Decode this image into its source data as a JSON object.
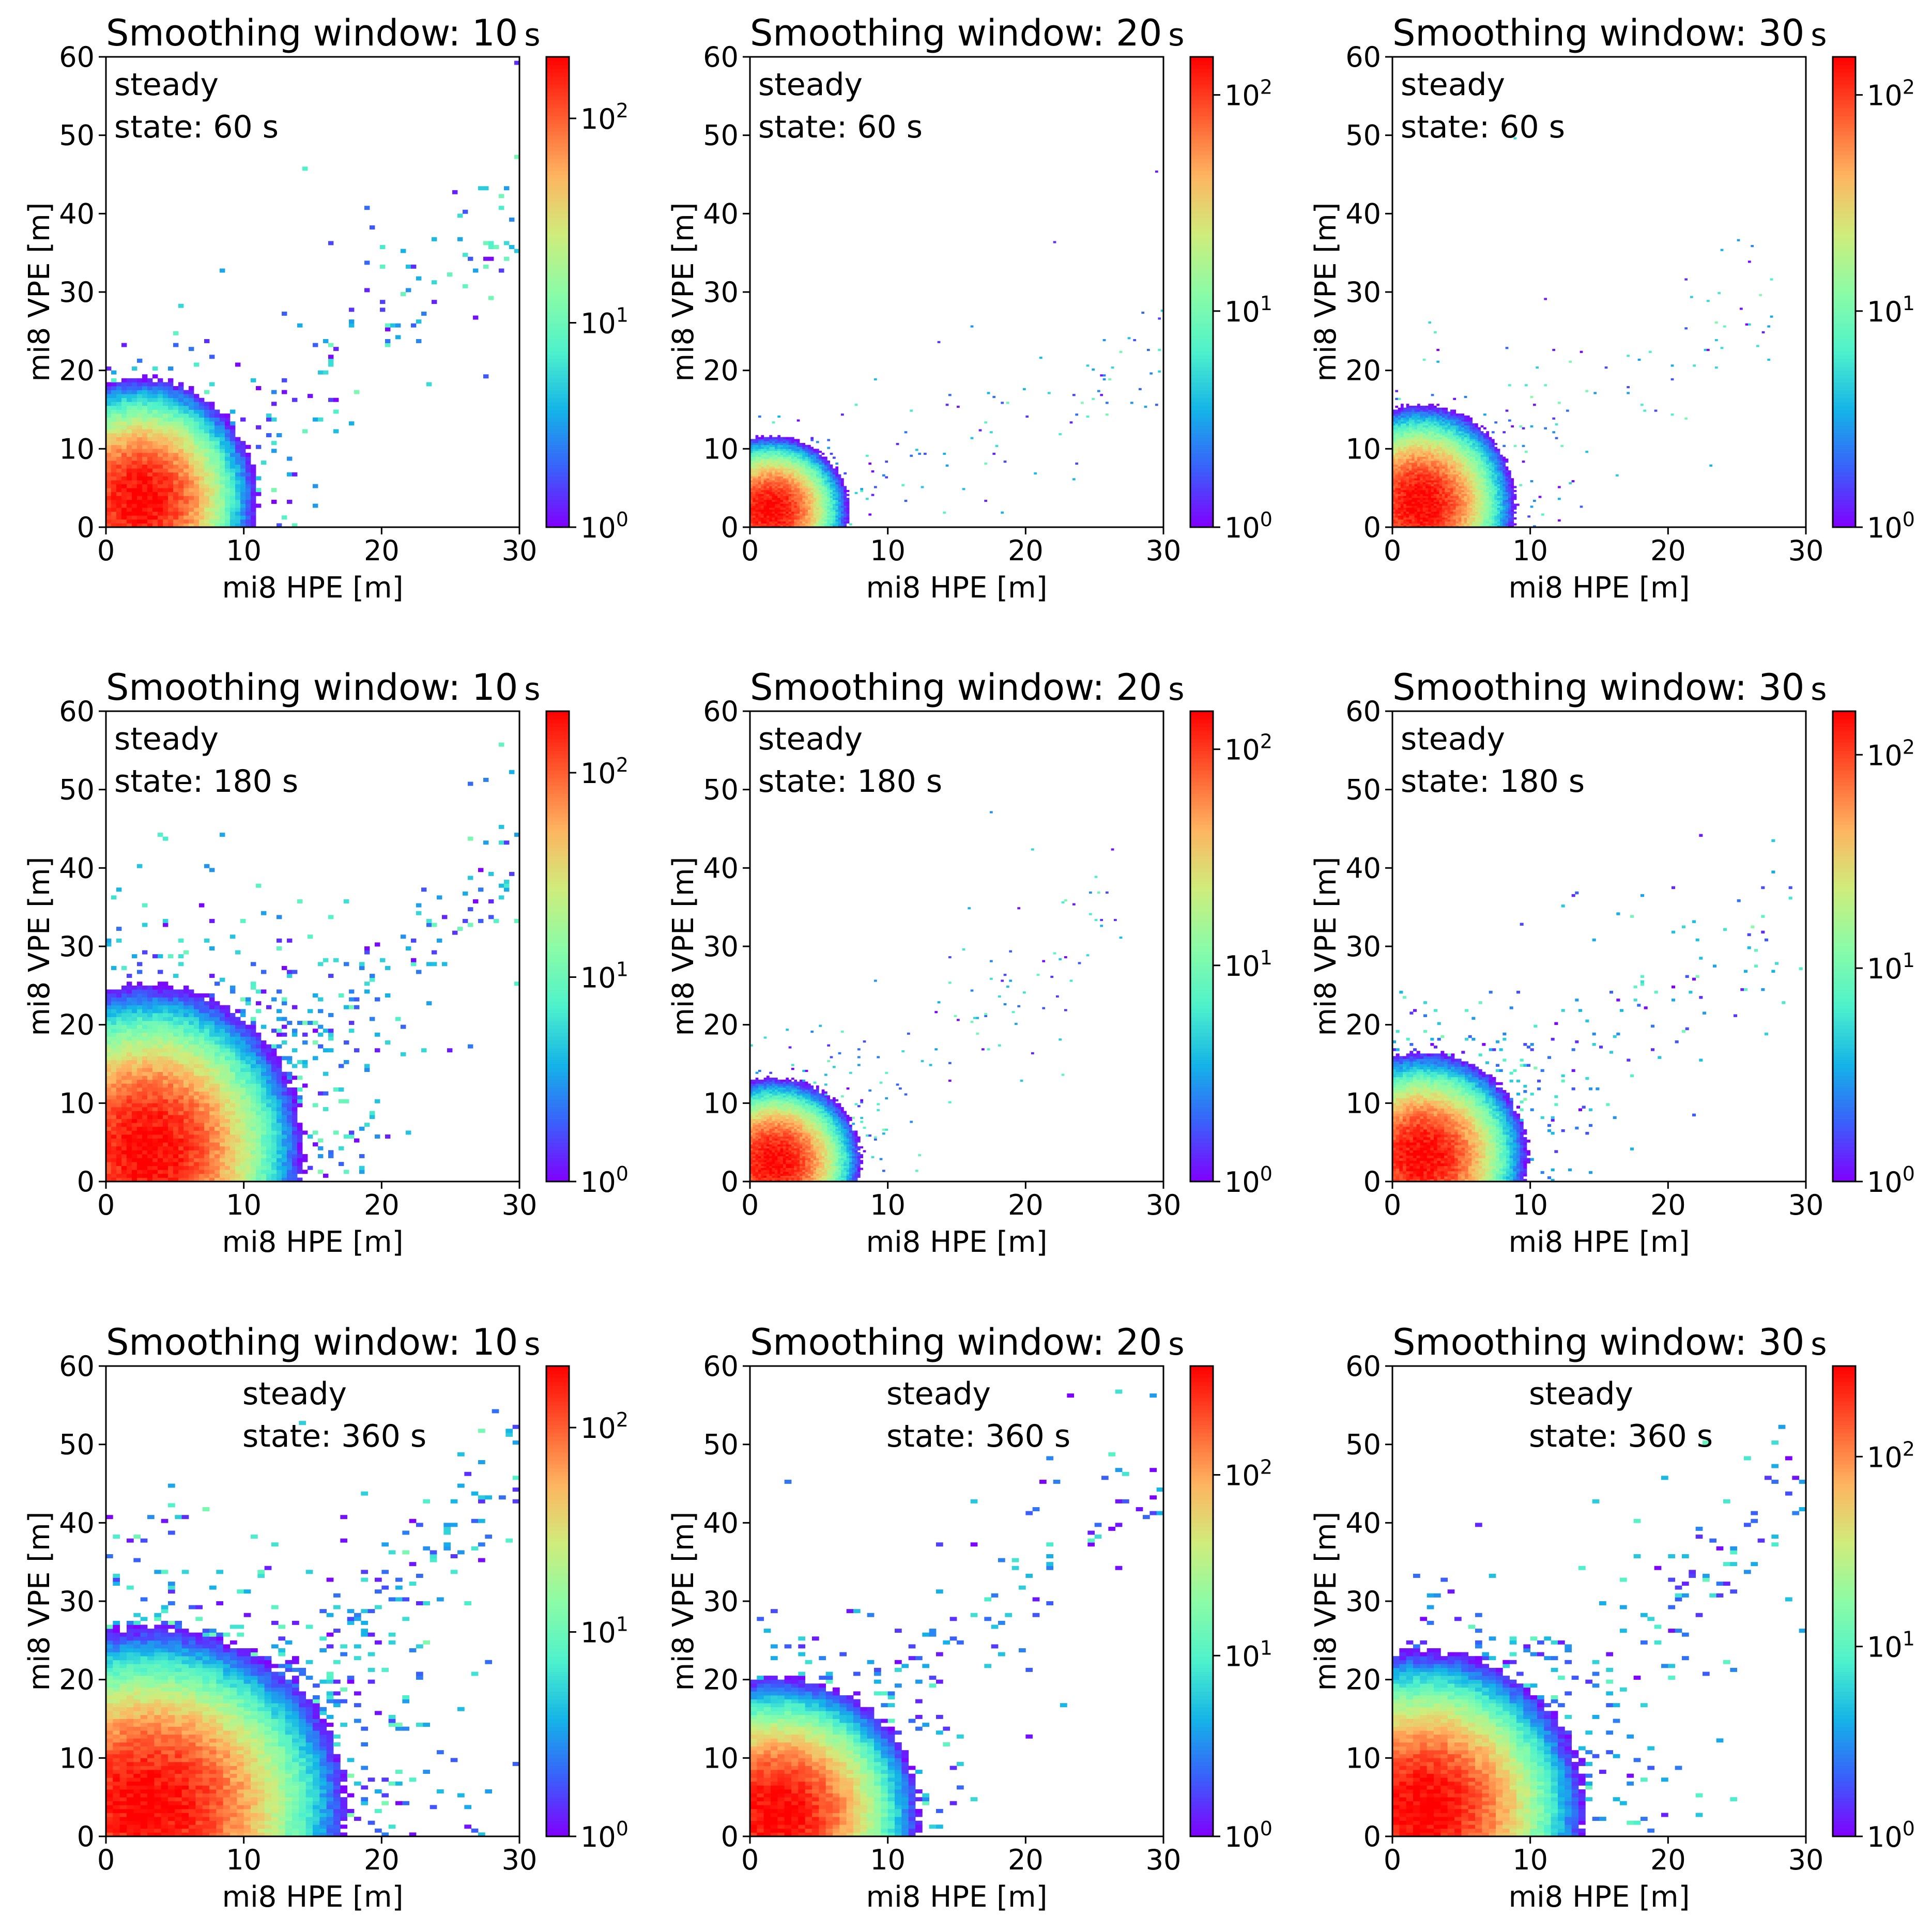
{
  "figure": {
    "rows": 3,
    "cols": 3,
    "colormap": {
      "name": "rainbow",
      "stops": [
        "#8000ff",
        "#3a5ffb",
        "#14b4e8",
        "#4ff2cb",
        "#8cfca6",
        "#d0ec7b",
        "#ffb360",
        "#ff5a2f",
        "#ff0000"
      ]
    }
  },
  "chart_data": [
    {
      "id": "r1c1",
      "type": "heatmap",
      "title": "Smoothing window: 10",
      "title_unit": "s",
      "annotation": [
        "steady",
        "state: 60 s"
      ],
      "annotation_position": "top-left",
      "xlabel": "mi8 HPE [m]",
      "ylabel": "mi8 VPE [m]",
      "xlim": [
        0,
        30
      ],
      "ylim": [
        0,
        60
      ],
      "xticks": [
        "0",
        "10",
        "20",
        "30"
      ],
      "yticks": [
        "0",
        "10",
        "20",
        "30",
        "40",
        "50",
        "60"
      ],
      "colorbar": {
        "scale": "log",
        "range": [
          1,
          200
        ],
        "ticks": [
          "10^0",
          "10^1",
          "10^2"
        ]
      },
      "bins": [
        80,
        120
      ],
      "distribution": {
        "core_hpe": 2.5,
        "core_vpe": 3.5,
        "spread_hpe": 2.6,
        "spread_vpe": 4.8,
        "peak_count": 200,
        "tail_slope": 1.3,
        "tail_extent_hpe": 30,
        "scatter_level": 1
      }
    },
    {
      "id": "r1c2",
      "type": "heatmap",
      "title": "Smoothing window: 20",
      "title_unit": "s",
      "annotation": [
        "steady",
        "state: 60 s"
      ],
      "annotation_position": "top-left",
      "xlabel": "mi8 HPE [m]",
      "ylabel": "mi8 VPE [m]",
      "xlim": [
        0,
        30
      ],
      "ylim": [
        0,
        60
      ],
      "xticks": [
        "0",
        "10",
        "20",
        "30"
      ],
      "yticks": [
        "0",
        "10",
        "20",
        "30",
        "40",
        "50",
        "60"
      ],
      "colorbar": {
        "scale": "log",
        "range": [
          1,
          150
        ],
        "ticks": [
          "10^0",
          "10^1",
          "10^2"
        ]
      },
      "bins": [
        150,
        240
      ],
      "distribution": {
        "core_hpe": 1.5,
        "core_vpe": 2.2,
        "spread_hpe": 1.8,
        "spread_vpe": 3.0,
        "peak_count": 150,
        "tail_slope": 0.7,
        "tail_extent_hpe": 30,
        "scatter_level": 0.7
      }
    },
    {
      "id": "r1c3",
      "type": "heatmap",
      "title": "Smoothing window: 30",
      "title_unit": "s",
      "annotation": [
        "steady",
        "state: 60 s"
      ],
      "annotation_position": "top-left",
      "xlabel": "mi8 HPE [m]",
      "ylabel": "mi8 VPE [m]",
      "xlim": [
        0,
        30
      ],
      "ylim": [
        0,
        60
      ],
      "xticks": [
        "0",
        "10",
        "20",
        "30"
      ],
      "yticks": [
        "0",
        "10",
        "20",
        "30",
        "40",
        "50",
        "60"
      ],
      "colorbar": {
        "scale": "log",
        "range": [
          1,
          150
        ],
        "ticks": [
          "10^0",
          "10^1",
          "10^2"
        ]
      },
      "bins": [
        150,
        240
      ],
      "distribution": {
        "core_hpe": 2.0,
        "core_vpe": 3.0,
        "spread_hpe": 2.2,
        "spread_vpe": 4.0,
        "peak_count": 150,
        "tail_slope": 1.1,
        "tail_extent_hpe": 28,
        "scatter_level": 0.9
      }
    },
    {
      "id": "r2c1",
      "type": "heatmap",
      "title": "Smoothing window: 10",
      "title_unit": "s",
      "annotation": [
        "steady",
        "state: 180 s"
      ],
      "annotation_position": "top-left",
      "xlabel": "mi8 HPE [m]",
      "ylabel": "mi8 VPE [m]",
      "xlim": [
        0,
        30
      ],
      "ylim": [
        0,
        60
      ],
      "xticks": [
        "0",
        "10",
        "20",
        "30"
      ],
      "yticks": [
        "0",
        "10",
        "20",
        "30",
        "40",
        "50",
        "60"
      ],
      "colorbar": {
        "scale": "log",
        "range": [
          1,
          200
        ],
        "ticks": [
          "10^0",
          "10^1",
          "10^2"
        ]
      },
      "bins": [
        80,
        120
      ],
      "distribution": {
        "core_hpe": 3.0,
        "core_vpe": 4.0,
        "spread_hpe": 3.5,
        "spread_vpe": 6.5,
        "peak_count": 200,
        "tail_slope": 1.3,
        "tail_extent_hpe": 30,
        "scatter_level": 1.6
      }
    },
    {
      "id": "r2c2",
      "type": "heatmap",
      "title": "Smoothing window: 20",
      "title_unit": "s",
      "annotation": [
        "steady",
        "state: 180 s"
      ],
      "annotation_position": "top-left",
      "xlabel": "mi8 HPE [m]",
      "ylabel": "mi8 VPE [m]",
      "xlim": [
        0,
        30
      ],
      "ylim": [
        0,
        60
      ],
      "xticks": [
        "0",
        "10",
        "20",
        "30"
      ],
      "yticks": [
        "0",
        "10",
        "20",
        "30",
        "40",
        "50",
        "60"
      ],
      "colorbar": {
        "scale": "log",
        "range": [
          1,
          150
        ],
        "ticks": [
          "10^0",
          "10^1",
          "10^2"
        ]
      },
      "bins": [
        150,
        240
      ],
      "distribution": {
        "core_hpe": 1.8,
        "core_vpe": 2.5,
        "spread_hpe": 2.0,
        "spread_vpe": 3.4,
        "peak_count": 150,
        "tail_slope": 1.2,
        "tail_extent_hpe": 27,
        "scatter_level": 1.0
      }
    },
    {
      "id": "r2c3",
      "type": "heatmap",
      "title": "Smoothing window: 30",
      "title_unit": "s",
      "annotation": [
        "steady",
        "state: 180 s"
      ],
      "annotation_position": "top-left",
      "xlabel": "mi8 HPE [m]",
      "ylabel": "mi8 VPE [m]",
      "xlim": [
        0,
        30
      ],
      "ylim": [
        0,
        60
      ],
      "xticks": [
        "0",
        "10",
        "20",
        "30"
      ],
      "yticks": [
        "0",
        "10",
        "20",
        "30",
        "40",
        "50",
        "60"
      ],
      "colorbar": {
        "scale": "log",
        "range": [
          1,
          160
        ],
        "ticks": [
          "10^0",
          "10^1",
          "10^2"
        ]
      },
      "bins": [
        120,
        180
      ],
      "distribution": {
        "core_hpe": 2.2,
        "core_vpe": 3.2,
        "spread_hpe": 2.4,
        "spread_vpe": 4.2,
        "peak_count": 160,
        "tail_slope": 1.25,
        "tail_extent_hpe": 30,
        "scatter_level": 1.2
      }
    },
    {
      "id": "r3c1",
      "type": "heatmap",
      "title": "Smoothing window: 10",
      "title_unit": "s",
      "annotation": [
        "steady",
        "state: 360 s"
      ],
      "annotation_position": "top-center",
      "xlabel": "mi8 HPE [m]",
      "ylabel": "mi8 VPE [m]",
      "xlim": [
        0,
        30
      ],
      "ylim": [
        0,
        60
      ],
      "xticks": [
        "0",
        "10",
        "20",
        "30"
      ],
      "yticks": [
        "0",
        "10",
        "20",
        "30",
        "40",
        "50",
        "60"
      ],
      "colorbar": {
        "scale": "log",
        "range": [
          1,
          200
        ],
        "ticks": [
          "10^0",
          "10^1",
          "10^2"
        ]
      },
      "bins": [
        60,
        120
      ],
      "distribution": {
        "core_hpe": 3.0,
        "core_vpe": 4.0,
        "spread_hpe": 4.5,
        "spread_vpe": 7.0,
        "peak_count": 200,
        "tail_slope": 1.5,
        "tail_extent_hpe": 30,
        "scatter_level": 1.3
      }
    },
    {
      "id": "r3c2",
      "type": "heatmap",
      "title": "Smoothing window: 20",
      "title_unit": "s",
      "annotation": [
        "steady",
        "state: 360 s"
      ],
      "annotation_position": "top-center",
      "xlabel": "mi8 HPE [m]",
      "ylabel": "mi8 VPE [m]",
      "xlim": [
        0,
        30
      ],
      "ylim": [
        0,
        60
      ],
      "xticks": [
        "0",
        "10",
        "20",
        "30"
      ],
      "yticks": [
        "0",
        "10",
        "20",
        "30",
        "40",
        "50",
        "60"
      ],
      "colorbar": {
        "scale": "log",
        "range": [
          1,
          400
        ],
        "ticks": [
          "10^0",
          "10^1",
          "10^2"
        ]
      },
      "bins": [
        60,
        120
      ],
      "distribution": {
        "core_hpe": 2.0,
        "core_vpe": 3.0,
        "spread_hpe": 3.0,
        "spread_vpe": 5.0,
        "peak_count": 400,
        "tail_slope": 1.6,
        "tail_extent_hpe": 30,
        "scatter_level": 0.9
      }
    },
    {
      "id": "r3c3",
      "type": "heatmap",
      "title": "Smoothing window: 30",
      "title_unit": "s",
      "annotation": [
        "steady",
        "state: 360 s"
      ],
      "annotation_position": "top-center",
      "xlabel": "mi8 HPE [m]",
      "ylabel": "mi8 VPE [m]",
      "xlim": [
        0,
        30
      ],
      "ylim": [
        0,
        60
      ],
      "xticks": [
        "0",
        "10",
        "20",
        "30"
      ],
      "yticks": [
        "0",
        "10",
        "20",
        "30",
        "40",
        "50",
        "60"
      ],
      "colorbar": {
        "scale": "log",
        "range": [
          1,
          300
        ],
        "ticks": [
          "10^0",
          "10^1",
          "10^2"
        ]
      },
      "bins": [
        60,
        120
      ],
      "distribution": {
        "core_hpe": 2.2,
        "core_vpe": 3.5,
        "spread_hpe": 3.5,
        "spread_vpe": 6.0,
        "peak_count": 300,
        "tail_slope": 1.5,
        "tail_extent_hpe": 30,
        "scatter_level": 1.1
      }
    }
  ]
}
